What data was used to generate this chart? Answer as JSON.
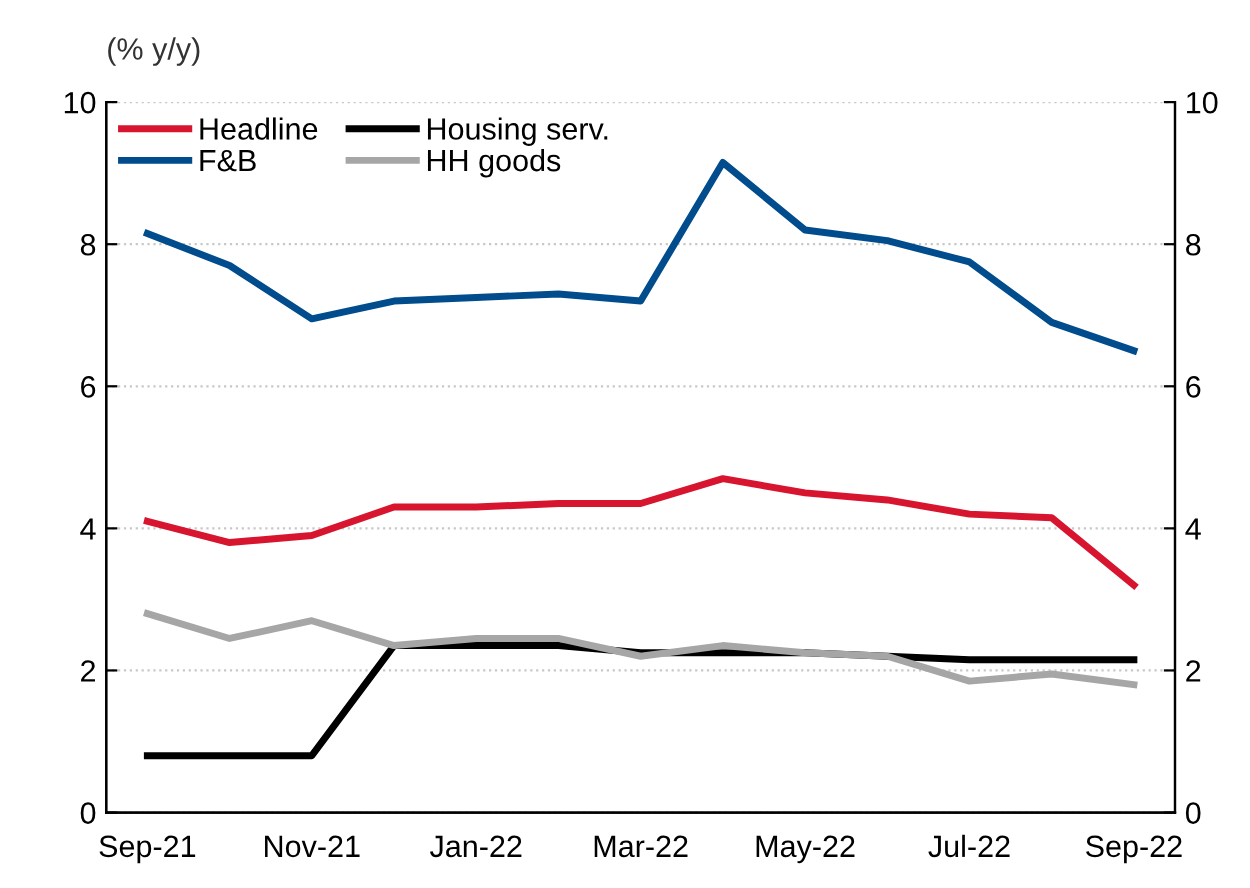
{
  "chart_data": {
    "type": "line",
    "ylabel": "(% y/y)",
    "categories": [
      "Sep-21",
      null,
      "Nov-21",
      null,
      "Jan-22",
      null,
      "Mar-22",
      null,
      "May-22",
      null,
      "Jul-22",
      null,
      "Sep-22"
    ],
    "series": [
      {
        "name": "Headline",
        "color": "#d7152f",
        "values": [
          4.1,
          3.8,
          3.9,
          4.3,
          4.3,
          4.35,
          4.35,
          4.7,
          4.5,
          4.4,
          4.2,
          4.15,
          3.2
        ]
      },
      {
        "name": "F&B",
        "color": "#004c8c",
        "values": [
          8.15,
          7.7,
          6.95,
          7.2,
          7.25,
          7.3,
          7.2,
          9.15,
          8.2,
          8.05,
          7.75,
          6.9,
          6.5
        ]
      },
      {
        "name": "Housing serv.",
        "color": "#000000",
        "values": [
          0.8,
          0.8,
          0.8,
          2.35,
          2.35,
          2.35,
          2.25,
          2.25,
          2.25,
          2.2,
          2.15,
          2.15,
          2.15
        ]
      },
      {
        "name": "HH goods",
        "color": "#a6a6a6",
        "values": [
          2.8,
          2.45,
          2.7,
          2.35,
          2.45,
          2.45,
          2.2,
          2.35,
          2.25,
          2.2,
          1.85,
          1.95,
          1.8
        ]
      }
    ],
    "ylim": [
      0,
      10
    ],
    "yticks": [
      0,
      2,
      4,
      6,
      8,
      10
    ],
    "y2lim": [
      0,
      10
    ],
    "y2ticks": [
      0,
      2,
      4,
      6,
      8,
      10
    ],
    "grid": "y",
    "legend": "top left",
    "marker": "none",
    "line_style": "solid"
  }
}
